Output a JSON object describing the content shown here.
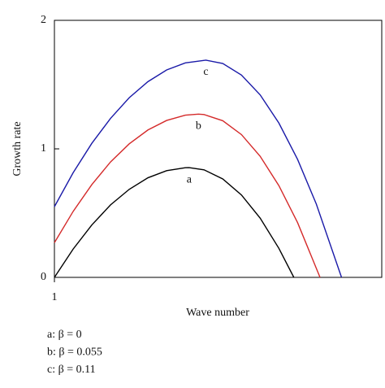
{
  "chart_data": {
    "type": "line",
    "x_label": "Wave number",
    "y_label": "Growth rate",
    "xlim": [
      1,
      2.75
    ],
    "xticks": [
      1
    ],
    "ylim": [
      0,
      2
    ],
    "yticks": [
      0,
      1,
      2
    ],
    "series": [
      {
        "name": "a: β = 0",
        "label": "a",
        "color": "#000000",
        "x": [
          1.0,
          1.1,
          1.2,
          1.3,
          1.4,
          1.5,
          1.6,
          1.7,
          1.72,
          1.8,
          1.9,
          2.0,
          2.1,
          2.2,
          2.28
        ],
        "values": [
          0,
          0.22,
          0.408,
          0.564,
          0.685,
          0.775,
          0.83,
          0.853,
          0.854,
          0.837,
          0.766,
          0.641,
          0.461,
          0.226,
          0
        ]
      },
      {
        "name": "b: β = 0.055",
        "label": "b",
        "color": "#d42a2a",
        "x": [
          1.0,
          1.1,
          1.2,
          1.3,
          1.4,
          1.5,
          1.6,
          1.7,
          1.77,
          1.8,
          1.9,
          2.0,
          2.1,
          2.2,
          2.3,
          2.42
        ],
        "values": [
          0.27,
          0.513,
          0.722,
          0.898,
          1.039,
          1.147,
          1.221,
          1.262,
          1.27,
          1.267,
          1.219,
          1.111,
          0.942,
          0.714,
          0.426,
          0
        ]
      },
      {
        "name": "c: β = 0.11",
        "label": "c",
        "color": "#1a1aa8",
        "x": [
          1.0,
          1.1,
          1.2,
          1.3,
          1.4,
          1.5,
          1.6,
          1.7,
          1.81,
          1.9,
          2.0,
          2.1,
          2.2,
          2.3,
          2.4,
          2.535
        ],
        "values": [
          0.55,
          0.814,
          1.043,
          1.237,
          1.398,
          1.523,
          1.614,
          1.669,
          1.69,
          1.664,
          1.574,
          1.42,
          1.201,
          0.918,
          0.571,
          0
        ]
      }
    ]
  }
}
